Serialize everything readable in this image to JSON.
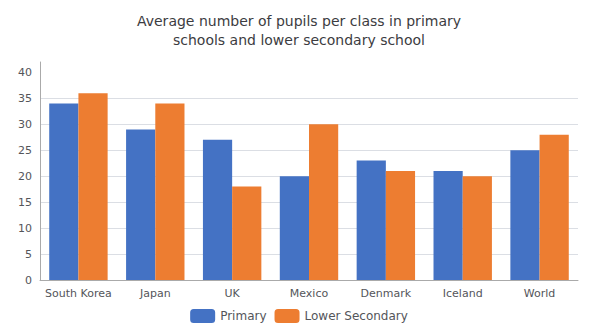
{
  "chart_data": {
    "type": "bar",
    "title": "Average number of pupils per class in primary\nschools and lower secondary school",
    "categories": [
      "South Korea",
      "Japan",
      "UK",
      "Mexico",
      "Denmark",
      "Iceland",
      "World"
    ],
    "series": [
      {
        "name": "Primary",
        "color": "#4472C4",
        "values": [
          34,
          29,
          27,
          20,
          23,
          21,
          25
        ]
      },
      {
        "name": "Lower Secondary",
        "color": "#ED7D31",
        "values": [
          36,
          34,
          18,
          30,
          21,
          20,
          28
        ]
      }
    ],
    "ylim": [
      0,
      42
    ],
    "yticks": [
      0,
      5,
      10,
      15,
      20,
      25,
      30,
      35,
      40
    ],
    "grid": true,
    "legend": "bottom"
  }
}
